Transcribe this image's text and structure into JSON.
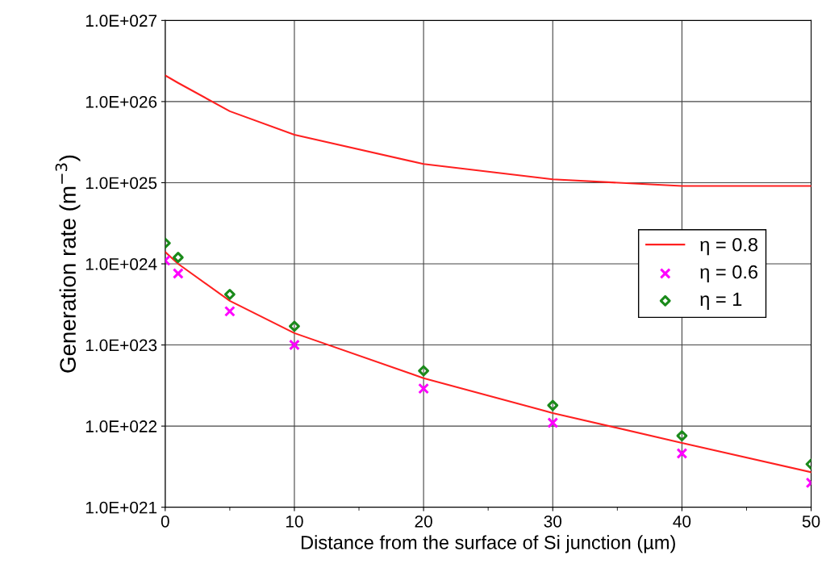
{
  "chart_data": {
    "type": "line",
    "xlabel": "Distance from the surface of Si junction (µm)",
    "ylabel": "Generation rate (m$^{−3}$)",
    "x": [
      0,
      1,
      5,
      10,
      20,
      30,
      40,
      50
    ],
    "series": [
      {
        "color": "#ff2020",
        "marker": "none",
        "values": [
          2.1e+26,
          1.7e+26,
          7.6e+25,
          3.9e+25,
          1.7e+25,
          1.1e+25,
          9.1e+24,
          9.1e+24
        ]
      },
      {
        "name": "η = 0.8",
        "color": "#ff2020",
        "marker": "none",
        "values": [
          1.4e+24,
          1e+24,
          3.5e+23,
          1.4e+23,
          3.9e+22,
          1.45e+22,
          6.2e+21,
          2.7e+21
        ]
      },
      {
        "name": "η = 0.6",
        "color": "#ff00ff",
        "type": "scatter",
        "marker": "cross",
        "values": [
          1.1e+24,
          7.6e+23,
          2.6e+23,
          1e+23,
          2.9e+22,
          1.1e+22,
          4.6e+21,
          2e+21
        ]
      },
      {
        "name": "η = 1",
        "color": "#1a8a1a",
        "type": "scatter",
        "marker": "diamond",
        "values": [
          1.8e+24,
          1.2e+24,
          4.2e+23,
          1.7e+23,
          4.8e+22,
          1.8e+22,
          7.6e+21,
          3.4e+21
        ]
      }
    ],
    "log": "y",
    "xlim": [
      0,
      50
    ],
    "xticks": [
      0,
      10,
      20,
      30,
      40,
      50
    ],
    "ylim": [
      1e+21,
      1e+27
    ],
    "yticks": [
      {
        "value": 1e+21,
        "label": "1.0E+021"
      },
      {
        "value": 1e+22,
        "label": "1.0E+022"
      },
      {
        "value": 1e+23,
        "label": "1.0E+023"
      },
      {
        "value": 1e+24,
        "label": "1.0E+024"
      },
      {
        "value": 1e+25,
        "label": "1.0E+025"
      },
      {
        "value": 1e+26,
        "label": "1.0E+026"
      },
      {
        "value": 1e+27,
        "label": "1.0E+027"
      }
    ],
    "grid": true,
    "legend": "center right"
  }
}
